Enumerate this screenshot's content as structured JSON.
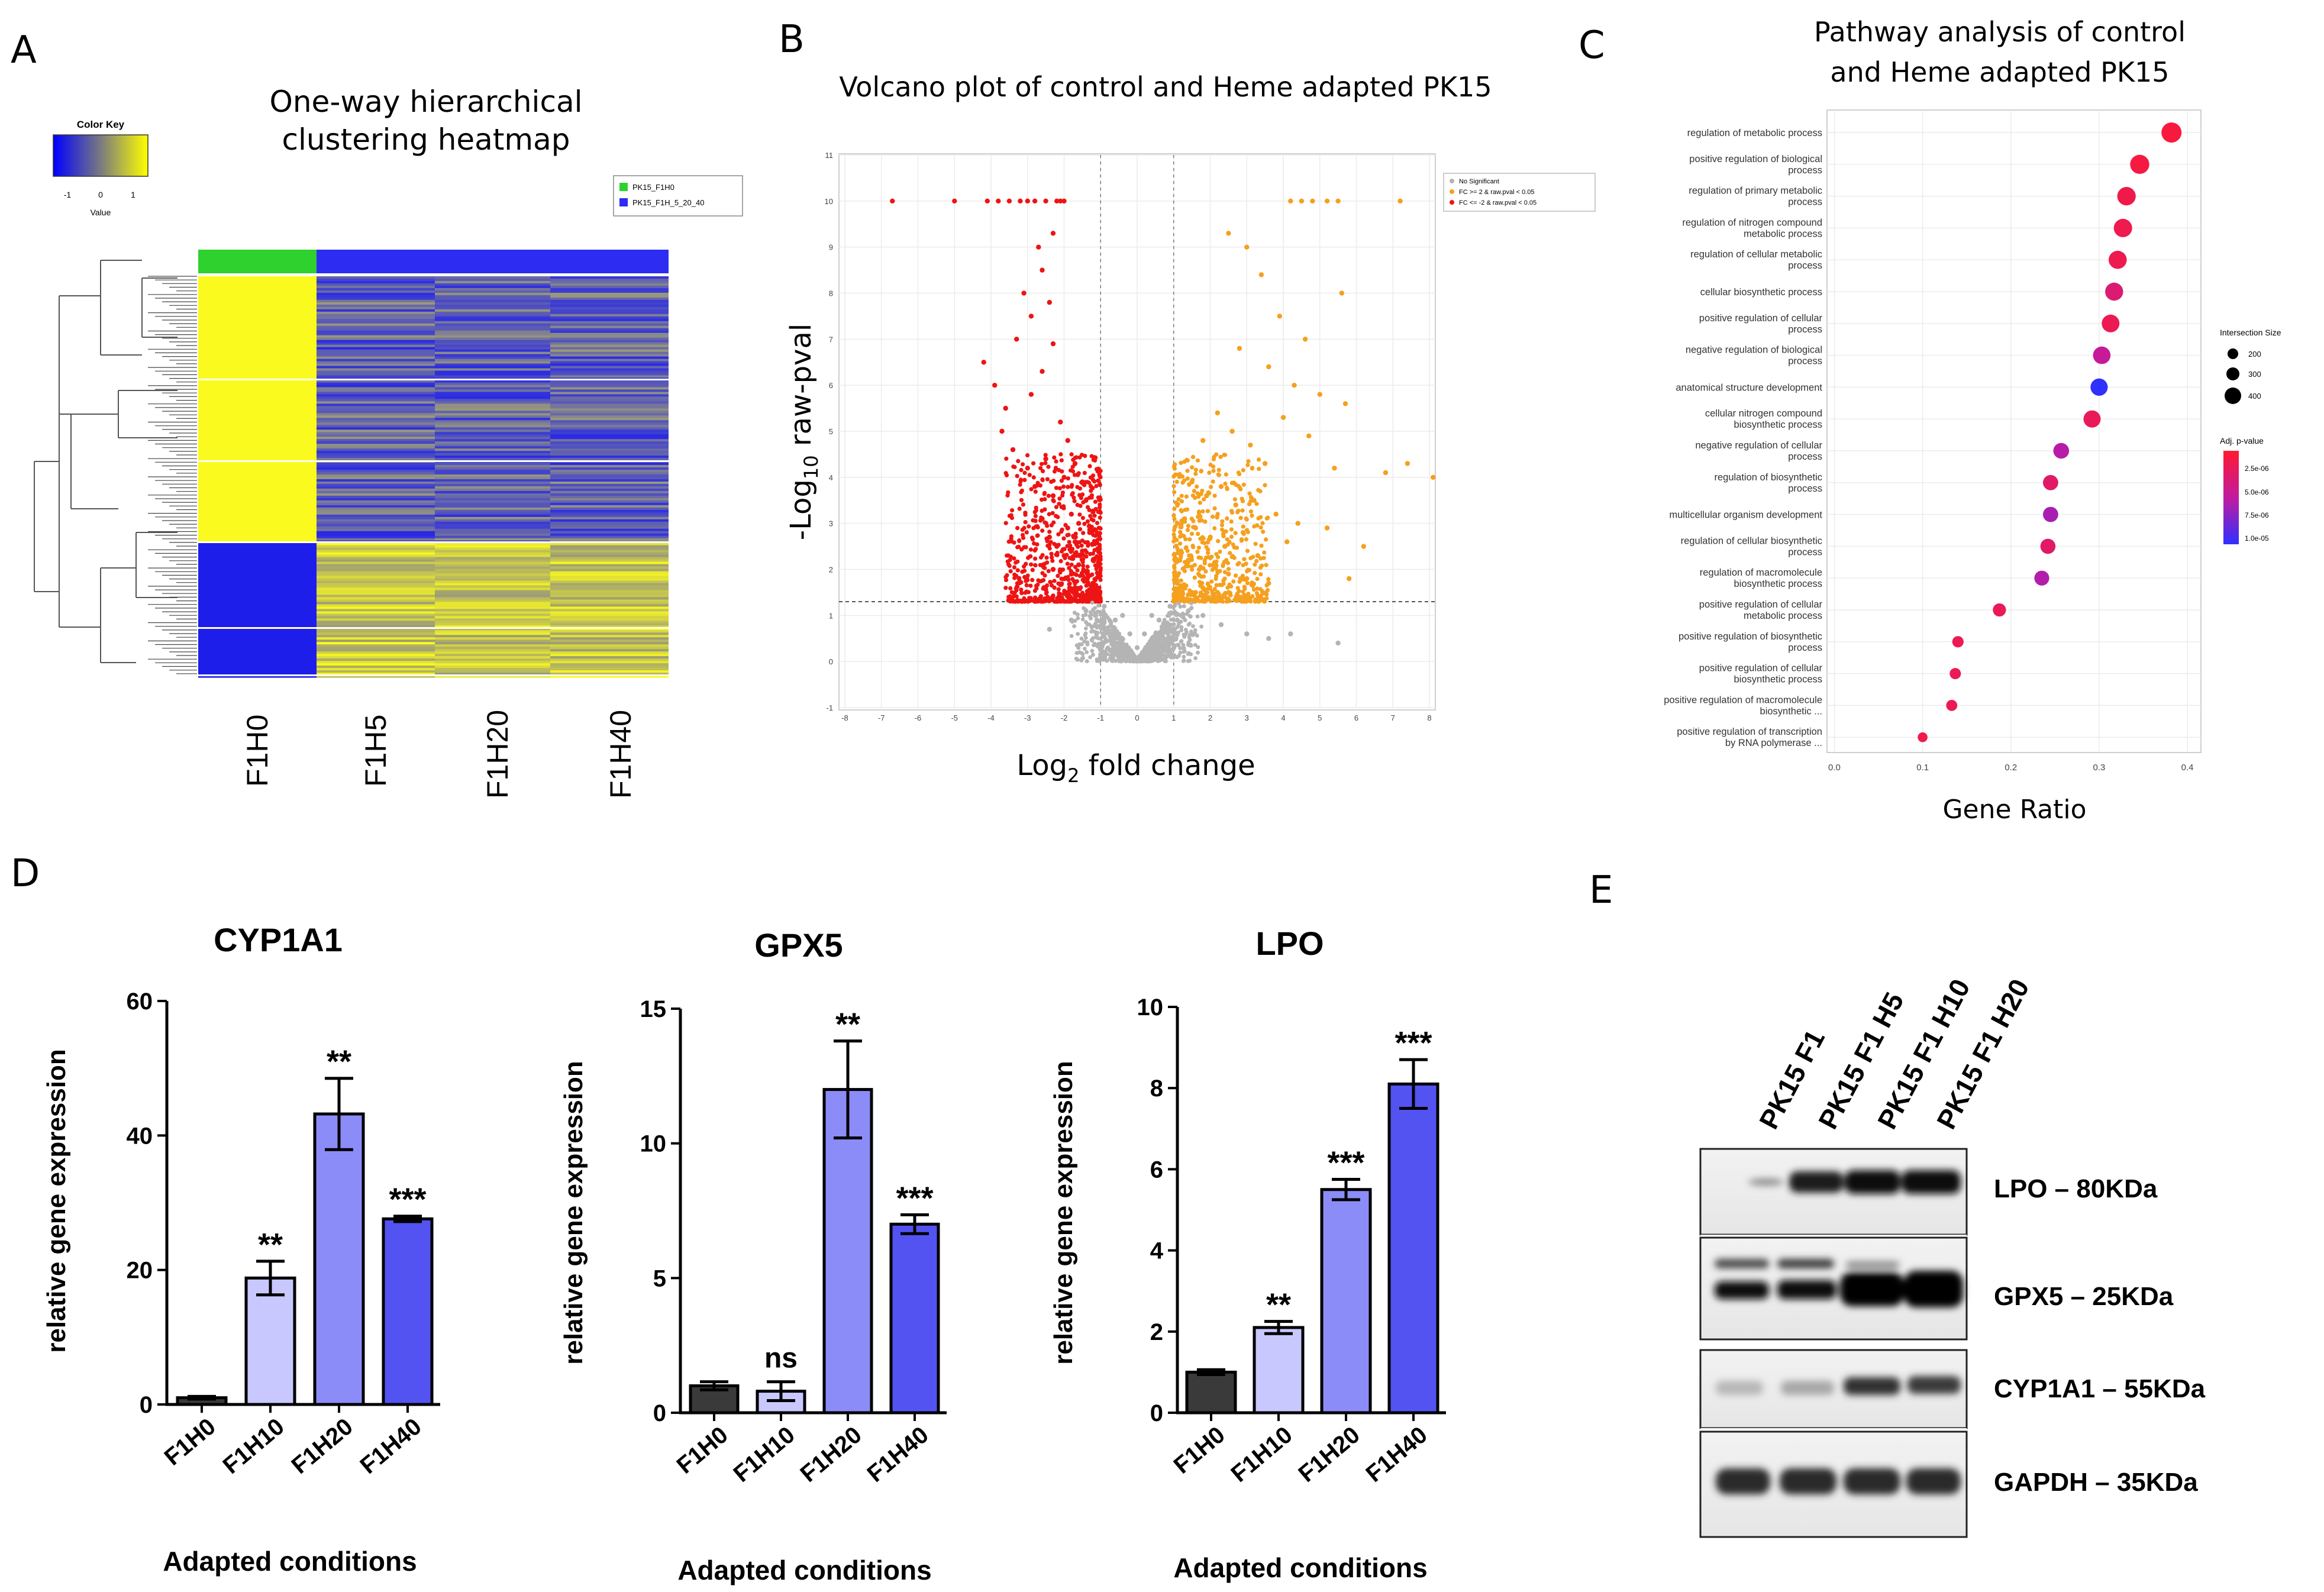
{
  "panels": [
    "A",
    "B",
    "C",
    "D",
    "E"
  ],
  "colors": {
    "heat_low": "#1616f0",
    "heat_mid": "#8a8a78",
    "heat_high": "#ffff14",
    "group_ctrl": "#2ed12e",
    "group_heme": "#2c2cf2",
    "volcano_up": "#f5a01e",
    "volcano_down": "#ee1414",
    "volcano_ns": "#b4b4b4",
    "bar_dark": "#3a3a3a",
    "bar_light": "#c8c8ff",
    "bar_mid": "#8c8cf8",
    "bar_deep": "#5353f2"
  },
  "heatmap": {
    "title_line1": "One-way hierarchical",
    "title_line2": "clustering heatmap",
    "color_key_title": "Color Key",
    "color_key_ticks": [
      "-1",
      "0",
      "1"
    ],
    "color_key_xlabel": "Value",
    "legend": [
      "PK15_F1H0",
      "PK15_F1H_5_20_40"
    ],
    "columns": [
      "F1H0",
      "F1H5",
      "F1H20",
      "F1H40"
    ]
  },
  "chart_data": [
    {
      "id": "volcano",
      "type": "scatter",
      "title": "Volcano plot of control and Heme adapted PK15",
      "xlabel": "Log2 fold change",
      "ylabel": "-Log10 raw-pval",
      "xlim": [
        -8,
        8
      ],
      "ylim": [
        -1,
        11
      ],
      "x_ticks": [
        "-8",
        "-7",
        "-6",
        "-5",
        "-4",
        "-3",
        "-2",
        "-1",
        "0",
        "1",
        "2",
        "3",
        "4",
        "5",
        "6",
        "7",
        "8"
      ],
      "y_ticks": [
        "-1",
        "0",
        "1",
        "2",
        "3",
        "4",
        "5",
        "6",
        "7",
        "8",
        "9",
        "10",
        "11"
      ],
      "threshold_y": 1.3,
      "fc_threshold": 1,
      "legend": [
        "No Significant",
        "FC >= 2 & raw.pval < 0.05",
        "FC <= -2 & raw.pval < 0.05"
      ],
      "series": [
        {
          "name": "FC <= -2",
          "x": [
            -6.7,
            -5.0,
            -4.1,
            -3.8,
            -3.5,
            -3.2,
            -3.0,
            -2.8,
            -2.5,
            -2.2,
            -2.1,
            -2.0,
            -4.2,
            -3.9,
            -3.6,
            -3.3,
            -3.1,
            -2.9,
            -2.7,
            -2.6,
            -2.4,
            -2.3,
            -3.7,
            -3.4,
            -2.9,
            -2.6,
            -2.3,
            -2.1,
            -1.9,
            -1.7,
            -1.5,
            -1.4,
            -3.0,
            -2.8,
            -2.5,
            -2.3,
            -2.0,
            -1.8,
            -1.6,
            -1.3,
            -2.6,
            -2.4,
            -2.2,
            -1.9,
            -1.7,
            -1.5,
            -1.2,
            -2.3,
            -2.0,
            -1.8,
            -1.6,
            -1.4,
            -1.2,
            -1.1,
            -1.9,
            -1.7,
            -1.5,
            -1.3,
            -1.1
          ],
          "y": [
            10,
            10,
            10,
            10,
            10,
            10,
            10,
            10,
            10,
            10,
            10,
            10,
            6.5,
            6.0,
            5.5,
            7.0,
            8.0,
            7.5,
            9.0,
            8.5,
            7.8,
            9.3,
            5.0,
            4.6,
            5.8,
            6.3,
            6.9,
            5.2,
            4.8,
            4.3,
            3.9,
            3.5,
            4.2,
            3.8,
            4.4,
            3.6,
            4.0,
            3.2,
            3.0,
            2.8,
            3.1,
            2.7,
            2.5,
            2.9,
            2.6,
            2.4,
            2.2,
            2.0,
            2.3,
            1.9,
            2.1,
            1.8,
            1.7,
            1.6,
            1.5,
            1.6,
            1.4,
            1.5,
            1.4
          ]
        },
        {
          "name": "FC >= 2",
          "x": [
            4.2,
            4.5,
            4.8,
            5.2,
            5.5,
            7.2,
            2.5,
            3.0,
            3.4,
            3.9,
            4.6,
            5.6,
            2.8,
            3.6,
            4.3,
            5.0,
            5.7,
            1.8,
            2.2,
            2.6,
            3.1,
            3.5,
            4.0,
            4.7,
            5.4,
            6.8,
            7.4,
            8.1,
            1.5,
            1.9,
            2.3,
            2.7,
            3.2,
            3.8,
            4.4,
            5.2,
            6.2,
            1.3,
            1.6,
            2.0,
            2.4,
            2.9,
            3.3,
            4.1,
            1.2,
            1.4,
            1.7,
            2.1,
            2.5,
            3.0,
            3.6,
            5.8,
            1.1,
            1.3,
            1.5,
            1.8,
            2.2,
            2.8,
            1.1,
            1.2,
            1.4,
            1.6,
            1.9
          ],
          "y": [
            10,
            10,
            10,
            10,
            10,
            10,
            9.3,
            9.0,
            8.4,
            7.5,
            7.0,
            8.0,
            6.8,
            6.4,
            6.0,
            5.8,
            5.6,
            4.8,
            5.4,
            5.0,
            4.7,
            4.3,
            5.3,
            4.9,
            4.2,
            4.1,
            4.3,
            4.0,
            3.9,
            3.6,
            3.8,
            3.4,
            3.5,
            3.2,
            3.0,
            2.9,
            2.5,
            3.1,
            2.9,
            2.7,
            2.5,
            2.8,
            2.3,
            2.6,
            2.4,
            2.2,
            2.0,
            2.1,
            1.9,
            1.8,
            1.7,
            1.8,
            1.7,
            1.6,
            1.5,
            1.6,
            1.5,
            1.4,
            1.4,
            1.35,
            1.45,
            1.5,
            1.35
          ]
        },
        {
          "name": "No Significant",
          "x": [
            -1.4,
            -1.1,
            -0.9,
            -0.7,
            -0.5,
            -0.3,
            -0.1,
            0.1,
            0.3,
            0.5,
            0.7,
            0.9,
            1.1,
            1.4,
            1.8,
            2.3,
            3.0,
            3.6,
            -1.8,
            -2.4,
            -0.6,
            -0.2,
            0.2,
            0.6,
            -0.9,
            0.9,
            -0.4,
            0.4,
            0.0,
            4.2,
            5.5
          ],
          "y": [
            1.1,
            0.9,
            0.7,
            0.5,
            0.35,
            0.2,
            0.05,
            0.05,
            0.2,
            0.35,
            0.5,
            0.7,
            0.9,
            1.1,
            1.0,
            0.8,
            0.6,
            0.5,
            0.9,
            0.7,
            0.9,
            0.6,
            0.6,
            0.9,
            1.2,
            1.2,
            1.0,
            1.0,
            0.3,
            0.6,
            0.4
          ]
        }
      ]
    },
    {
      "id": "pathway",
      "type": "scatter",
      "title_line1": "Pathway analysis of control",
      "title_line2": "and Heme adapted PK15",
      "xlabel": "Gene Ratio",
      "xlim": [
        -0.003,
        0.41
      ],
      "x_ticks": [
        "0.0",
        "0.1",
        "0.2",
        "0.3",
        "0.4"
      ],
      "terms": [
        [
          "regulation of metabolic process"
        ],
        [
          "positive regulation of biological",
          "process"
        ],
        [
          "regulation of primary metabolic",
          "process"
        ],
        [
          "regulation of nitrogen compound",
          "metabolic process"
        ],
        [
          "regulation of cellular metabolic",
          "process"
        ],
        [
          "cellular biosynthetic process"
        ],
        [
          "positive regulation of cellular",
          "process"
        ],
        [
          "negative regulation of biological",
          "process"
        ],
        [
          "anatomical structure development"
        ],
        [
          "cellular nitrogen compound",
          "biosynthetic process"
        ],
        [
          "negative regulation of cellular",
          "process"
        ],
        [
          "regulation of biosynthetic",
          "process"
        ],
        [
          "multicellular organism development"
        ],
        [
          "regulation of cellular biosynthetic",
          "process"
        ],
        [
          "regulation of macromolecule",
          "biosynthetic process"
        ],
        [
          "positive regulation of cellular",
          "metabolic process"
        ],
        [
          "positive regulation of biosynthetic",
          "process"
        ],
        [
          "positive regulation of cellular",
          "biosynthetic process"
        ],
        [
          "positive regulation of macromolecule",
          "biosynthetic ..."
        ],
        [
          "positive regulation of transcription",
          "by RNA polymerase ..."
        ]
      ],
      "gene_ratio": [
        0.382,
        0.346,
        0.331,
        0.327,
        0.321,
        0.317,
        0.313,
        0.303,
        0.3,
        0.292,
        0.257,
        0.245,
        0.245,
        0.242,
        0.235,
        0.187,
        0.14,
        0.137,
        0.133,
        0.1
      ],
      "intersection_size": [
        420,
        390,
        370,
        365,
        360,
        355,
        350,
        340,
        335,
        330,
        290,
        275,
        275,
        272,
        265,
        210,
        158,
        155,
        150,
        112
      ],
      "adj_pvalue": [
        2e-06,
        2.2e-06,
        2.5e-06,
        2.6e-06,
        2.7e-06,
        4e-06,
        2.8e-06,
        5.5e-06,
        1e-05,
        3e-06,
        6e-06,
        3.5e-06,
        6.5e-06,
        3.6e-06,
        6.2e-06,
        3e-06,
        2.8e-06,
        2.9e-06,
        2.9e-06,
        2.6e-06
      ],
      "legend_size_title": "Intersection Size",
      "legend_size_values": [
        "200",
        "300",
        "400"
      ],
      "legend_color_title": "Adj. p-value",
      "legend_color_values": [
        "2.5e-06",
        "5.0e-06",
        "7.5e-06",
        "1.0e-05"
      ]
    },
    {
      "id": "cyp1a1",
      "type": "bar",
      "title": "CYP1A1",
      "ylabel": "relative gene expression",
      "xlabel": "Adapted conditions",
      "categories": [
        "F1H0",
        "F1H10",
        "F1H20",
        "F1H40"
      ],
      "values": [
        1,
        18.8,
        43.2,
        27.6
      ],
      "errors": [
        0.2,
        2.5,
        5.3,
        0.4
      ],
      "significance": [
        "",
        "**",
        "**",
        "***"
      ],
      "ylim": [
        0,
        60
      ],
      "y_ticks": [
        "0",
        "20",
        "40",
        "60"
      ]
    },
    {
      "id": "gpx5",
      "type": "bar",
      "title": "GPX5",
      "ylabel": "relative gene expression",
      "xlabel": "Adapted conditions",
      "categories": [
        "F1H0",
        "F1H10",
        "F1H20",
        "F1H40"
      ],
      "values": [
        1,
        0.8,
        12,
        7
      ],
      "errors": [
        0.15,
        0.35,
        1.8,
        0.35
      ],
      "significance": [
        "",
        "ns",
        "**",
        "***"
      ],
      "ylim": [
        0,
        15
      ],
      "y_ticks": [
        "0",
        "5",
        "10",
        "15"
      ]
    },
    {
      "id": "lpo",
      "type": "bar",
      "title": "LPO",
      "ylabel": "relative gene expression",
      "xlabel": "Adapted conditions",
      "categories": [
        "F1H0",
        "F1H10",
        "F1H20",
        "F1H40"
      ],
      "values": [
        1,
        2.1,
        5.5,
        8.1
      ],
      "errors": [
        0.06,
        0.15,
        0.25,
        0.6
      ],
      "significance": [
        "",
        "**",
        "***",
        "***"
      ],
      "ylim": [
        0,
        10
      ],
      "y_ticks": [
        "0",
        "2",
        "4",
        "6",
        "8",
        "10"
      ]
    }
  ],
  "western": {
    "lanes": [
      "PK15 F1",
      "PK15 F1 H5",
      "PK15 F1 H10",
      "PK15 F1 H20"
    ],
    "bands": [
      "LPO – 80KDa",
      "GPX5 – 25KDa",
      "CYP1A1 – 55KDa",
      "GAPDH – 35KDa"
    ]
  }
}
